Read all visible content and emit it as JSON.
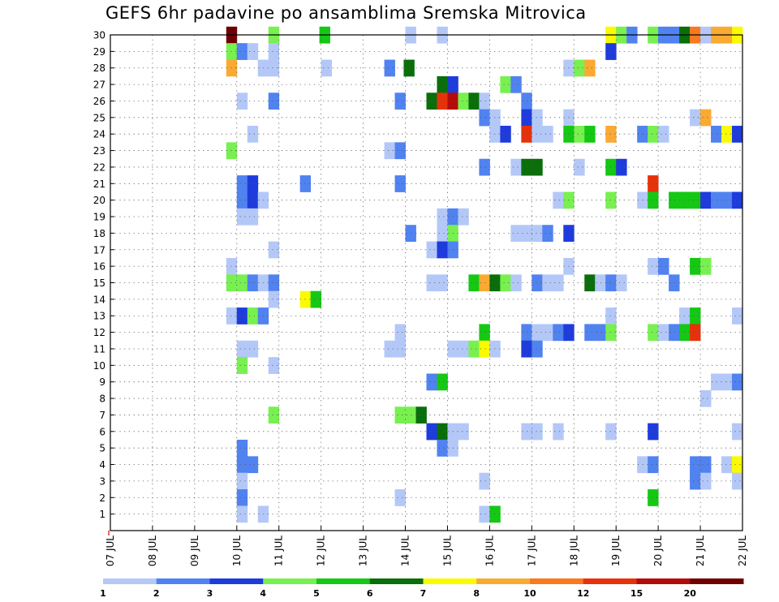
{
  "title": "GEFS 6hr padavine po ansamblima Sremska Mitrovica",
  "chart_data": {
    "type": "heatmap",
    "title": "GEFS 6hr padavine po ansamblima Sremska Mitrovica",
    "x_tick_labels": [
      "07 JUL",
      "08 JUL",
      "09 JUL",
      "10 JUL",
      "11 JUL",
      "12 JUL",
      "13 JUL",
      "14 JUL",
      "15 JUL",
      "16 JUL",
      "17 JUL",
      "18 JUL",
      "19 JUL",
      "20 JUL",
      "21 JUL",
      "22 JUL"
    ],
    "y_tick_labels": [
      "1",
      "2",
      "3",
      "4",
      "5",
      "6",
      "7",
      "8",
      "9",
      "10",
      "11",
      "12",
      "13",
      "14",
      "15",
      "16",
      "17",
      "18",
      "19",
      "20",
      "21",
      "22",
      "23",
      "24",
      "25",
      "26",
      "27",
      "28",
      "29",
      "30"
    ],
    "x_range": [
      "07 JUL 00Z",
      "22 JUL 00Z"
    ],
    "x_step": "6hr",
    "y_range": [
      0,
      30
    ],
    "grid": true,
    "legend_placement": "bottom",
    "colorbar": {
      "levels": [
        1,
        2,
        3,
        4,
        5,
        6,
        7,
        8,
        10,
        12,
        15,
        20
      ],
      "colors": [
        "#b4c8f8",
        "#5082f0",
        "#1e3cdc",
        "#78f050",
        "#14c814",
        "#0a6e0a",
        "#fafa00",
        "#faaa32",
        "#fa781e",
        "#e6320a",
        "#b40a0a",
        "#6e0000"
      ]
    },
    "cells": [
      {
        "member": 30,
        "t": 2.75,
        "c": 11
      },
      {
        "member": 30,
        "t": 3.75,
        "c": 3
      },
      {
        "member": 30,
        "t": 4.96,
        "c": 4
      },
      {
        "member": 30,
        "t": 7.0,
        "c": 0
      },
      {
        "member": 30,
        "t": 7.75,
        "c": 0
      },
      {
        "member": 30,
        "t": 11.75,
        "c": 6
      },
      {
        "member": 30,
        "t": 12.0,
        "c": 3
      },
      {
        "member": 30,
        "t": 12.25,
        "c": 1
      },
      {
        "member": 30,
        "t": 12.75,
        "c": 3
      },
      {
        "member": 30,
        "t": 13.0,
        "c": 1
      },
      {
        "member": 30,
        "t": 13.25,
        "c": 1
      },
      {
        "member": 30,
        "t": 13.5,
        "c": 5
      },
      {
        "member": 30,
        "t": 13.75,
        "c": 8
      },
      {
        "member": 30,
        "t": 14.0,
        "c": 0
      },
      {
        "member": 30,
        "t": 14.25,
        "c": 7
      },
      {
        "member": 30,
        "t": 14.5,
        "c": 7
      },
      {
        "member": 30,
        "t": 14.75,
        "c": 6
      },
      {
        "member": 29,
        "t": 2.75,
        "c": 3
      },
      {
        "member": 29,
        "t": 3.0,
        "c": 1
      },
      {
        "member": 29,
        "t": 3.25,
        "c": 0
      },
      {
        "member": 29,
        "t": 3.75,
        "c": 0
      },
      {
        "member": 29,
        "t": 11.75,
        "c": 2
      },
      {
        "member": 28,
        "t": 2.75,
        "c": 7
      },
      {
        "member": 28,
        "t": 3.5,
        "c": 0
      },
      {
        "member": 28,
        "t": 3.75,
        "c": 0
      },
      {
        "member": 28,
        "t": 5.0,
        "c": 0
      },
      {
        "member": 28,
        "t": 6.5,
        "c": 1
      },
      {
        "member": 28,
        "t": 6.96,
        "c": 5
      },
      {
        "member": 28,
        "t": 10.75,
        "c": 0
      },
      {
        "member": 28,
        "t": 11.0,
        "c": 3
      },
      {
        "member": 28,
        "t": 11.25,
        "c": 7
      },
      {
        "member": 27,
        "t": 7.75,
        "c": 5
      },
      {
        "member": 27,
        "t": 8.0,
        "c": 2
      },
      {
        "member": 27,
        "t": 9.25,
        "c": 3
      },
      {
        "member": 27,
        "t": 9.5,
        "c": 1
      },
      {
        "member": 26,
        "t": 3.0,
        "c": 0
      },
      {
        "member": 26,
        "t": 3.75,
        "c": 1
      },
      {
        "member": 26,
        "t": 6.75,
        "c": 1
      },
      {
        "member": 26,
        "t": 7.5,
        "c": 5
      },
      {
        "member": 26,
        "t": 7.75,
        "c": 9
      },
      {
        "member": 26,
        "t": 8.0,
        "c": 10
      },
      {
        "member": 26,
        "t": 8.25,
        "c": 3
      },
      {
        "member": 26,
        "t": 8.5,
        "c": 5
      },
      {
        "member": 26,
        "t": 8.75,
        "c": 0
      },
      {
        "member": 26,
        "t": 9.75,
        "c": 1
      },
      {
        "member": 25,
        "t": 8.75,
        "c": 1
      },
      {
        "member": 25,
        "t": 9.0,
        "c": 0
      },
      {
        "member": 25,
        "t": 9.75,
        "c": 2
      },
      {
        "member": 25,
        "t": 10.0,
        "c": 0
      },
      {
        "member": 25,
        "t": 10.75,
        "c": 0
      },
      {
        "member": 25,
        "t": 13.75,
        "c": 0
      },
      {
        "member": 25,
        "t": 14.0,
        "c": 7
      },
      {
        "member": 24,
        "t": 3.25,
        "c": 0
      },
      {
        "member": 24,
        "t": 9.0,
        "c": 0
      },
      {
        "member": 24,
        "t": 9.25,
        "c": 2
      },
      {
        "member": 24,
        "t": 9.75,
        "c": 9
      },
      {
        "member": 24,
        "t": 10.0,
        "c": 0
      },
      {
        "member": 24,
        "t": 10.25,
        "c": 0
      },
      {
        "member": 24,
        "t": 10.75,
        "c": 4
      },
      {
        "member": 24,
        "t": 11.0,
        "c": 3
      },
      {
        "member": 24,
        "t": 11.25,
        "c": 4
      },
      {
        "member": 24,
        "t": 11.75,
        "c": 7
      },
      {
        "member": 24,
        "t": 12.5,
        "c": 1
      },
      {
        "member": 24,
        "t": 12.75,
        "c": 3
      },
      {
        "member": 24,
        "t": 13.0,
        "c": 0
      },
      {
        "member": 24,
        "t": 14.25,
        "c": 1
      },
      {
        "member": 24,
        "t": 14.5,
        "c": 6
      },
      {
        "member": 24,
        "t": 14.75,
        "c": 2
      },
      {
        "member": 23,
        "t": 2.75,
        "c": 3
      },
      {
        "member": 23,
        "t": 6.5,
        "c": 0
      },
      {
        "member": 23,
        "t": 6.75,
        "c": 1
      },
      {
        "member": 22,
        "t": 8.75,
        "c": 1
      },
      {
        "member": 22,
        "t": 9.5,
        "c": 0
      },
      {
        "member": 22,
        "t": 9.75,
        "c": 5
      },
      {
        "member": 22,
        "t": 10.0,
        "c": 5
      },
      {
        "member": 22,
        "t": 11.0,
        "c": 0
      },
      {
        "member": 22,
        "t": 11.75,
        "c": 4
      },
      {
        "member": 22,
        "t": 12.0,
        "c": 2
      },
      {
        "member": 21,
        "t": 3.0,
        "c": 1
      },
      {
        "member": 21,
        "t": 3.25,
        "c": 2
      },
      {
        "member": 21,
        "t": 4.5,
        "c": 1
      },
      {
        "member": 21,
        "t": 6.75,
        "c": 1
      },
      {
        "member": 21,
        "t": 12.75,
        "c": 9
      },
      {
        "member": 20,
        "t": 3.0,
        "c": 1
      },
      {
        "member": 20,
        "t": 3.25,
        "c": 2
      },
      {
        "member": 20,
        "t": 3.5,
        "c": 0
      },
      {
        "member": 20,
        "t": 10.5,
        "c": 0
      },
      {
        "member": 20,
        "t": 10.75,
        "c": 3
      },
      {
        "member": 20,
        "t": 11.75,
        "c": 3
      },
      {
        "member": 20,
        "t": 12.5,
        "c": 0
      },
      {
        "member": 20,
        "t": 12.75,
        "c": 4
      },
      {
        "member": 20,
        "t": 13.25,
        "c": 4
      },
      {
        "member": 20,
        "t": 13.5,
        "c": 4
      },
      {
        "member": 20,
        "t": 13.75,
        "c": 4
      },
      {
        "member": 20,
        "t": 14.0,
        "c": 2
      },
      {
        "member": 20,
        "t": 14.25,
        "c": 1
      },
      {
        "member": 20,
        "t": 14.5,
        "c": 1
      },
      {
        "member": 20,
        "t": 14.75,
        "c": 2
      },
      {
        "member": 19,
        "t": 3.0,
        "c": 0
      },
      {
        "member": 19,
        "t": 3.25,
        "c": 0
      },
      {
        "member": 19,
        "t": 7.75,
        "c": 0
      },
      {
        "member": 19,
        "t": 8.0,
        "c": 1
      },
      {
        "member": 19,
        "t": 8.25,
        "c": 0
      },
      {
        "member": 18,
        "t": 7.0,
        "c": 1
      },
      {
        "member": 18,
        "t": 7.75,
        "c": 0
      },
      {
        "member": 18,
        "t": 8.0,
        "c": 3
      },
      {
        "member": 18,
        "t": 9.5,
        "c": 0
      },
      {
        "member": 18,
        "t": 9.75,
        "c": 0
      },
      {
        "member": 18,
        "t": 10.0,
        "c": 0
      },
      {
        "member": 18,
        "t": 10.25,
        "c": 1
      },
      {
        "member": 18,
        "t": 10.75,
        "c": 2
      },
      {
        "member": 17,
        "t": 3.75,
        "c": 0
      },
      {
        "member": 17,
        "t": 7.5,
        "c": 0
      },
      {
        "member": 17,
        "t": 7.75,
        "c": 2
      },
      {
        "member": 17,
        "t": 8.0,
        "c": 1
      },
      {
        "member": 16,
        "t": 2.75,
        "c": 0
      },
      {
        "member": 16,
        "t": 10.75,
        "c": 0
      },
      {
        "member": 16,
        "t": 12.75,
        "c": 0
      },
      {
        "member": 16,
        "t": 13.0,
        "c": 1
      },
      {
        "member": 16,
        "t": 13.75,
        "c": 4
      },
      {
        "member": 16,
        "t": 14.0,
        "c": 3
      },
      {
        "member": 15,
        "t": 2.75,
        "c": 3
      },
      {
        "member": 15,
        "t": 3.0,
        "c": 3
      },
      {
        "member": 15,
        "t": 3.25,
        "c": 1
      },
      {
        "member": 15,
        "t": 3.5,
        "c": 0
      },
      {
        "member": 15,
        "t": 3.75,
        "c": 1
      },
      {
        "member": 15,
        "t": 7.5,
        "c": 0
      },
      {
        "member": 15,
        "t": 7.75,
        "c": 0
      },
      {
        "member": 15,
        "t": 8.5,
        "c": 4
      },
      {
        "member": 15,
        "t": 8.75,
        "c": 7
      },
      {
        "member": 15,
        "t": 9.0,
        "c": 5
      },
      {
        "member": 15,
        "t": 9.25,
        "c": 3
      },
      {
        "member": 15,
        "t": 9.5,
        "c": 0
      },
      {
        "member": 15,
        "t": 10.0,
        "c": 1
      },
      {
        "member": 15,
        "t": 10.25,
        "c": 0
      },
      {
        "member": 15,
        "t": 10.5,
        "c": 0
      },
      {
        "member": 15,
        "t": 11.25,
        "c": 5
      },
      {
        "member": 15,
        "t": 11.5,
        "c": 0
      },
      {
        "member": 15,
        "t": 11.75,
        "c": 1
      },
      {
        "member": 15,
        "t": 12.0,
        "c": 0
      },
      {
        "member": 15,
        "t": 13.25,
        "c": 1
      },
      {
        "member": 14,
        "t": 3.75,
        "c": 0
      },
      {
        "member": 14,
        "t": 4.5,
        "c": 6
      },
      {
        "member": 14,
        "t": 4.75,
        "c": 4
      },
      {
        "member": 13,
        "t": 2.75,
        "c": 0
      },
      {
        "member": 13,
        "t": 3.0,
        "c": 2
      },
      {
        "member": 13,
        "t": 3.25,
        "c": 3
      },
      {
        "member": 13,
        "t": 3.5,
        "c": 1
      },
      {
        "member": 13,
        "t": 11.75,
        "c": 0
      },
      {
        "member": 13,
        "t": 13.5,
        "c": 0
      },
      {
        "member": 13,
        "t": 13.75,
        "c": 4
      },
      {
        "member": 13,
        "t": 14.75,
        "c": 0
      },
      {
        "member": 12,
        "t": 6.75,
        "c": 0
      },
      {
        "member": 12,
        "t": 8.75,
        "c": 4
      },
      {
        "member": 12,
        "t": 9.75,
        "c": 1
      },
      {
        "member": 12,
        "t": 10.0,
        "c": 0
      },
      {
        "member": 12,
        "t": 10.25,
        "c": 0
      },
      {
        "member": 12,
        "t": 10.5,
        "c": 1
      },
      {
        "member": 12,
        "t": 10.75,
        "c": 2
      },
      {
        "member": 12,
        "t": 11.25,
        "c": 1
      },
      {
        "member": 12,
        "t": 11.5,
        "c": 1
      },
      {
        "member": 12,
        "t": 11.75,
        "c": 3
      },
      {
        "member": 12,
        "t": 12.75,
        "c": 3
      },
      {
        "member": 12,
        "t": 13.0,
        "c": 0
      },
      {
        "member": 12,
        "t": 13.25,
        "c": 1
      },
      {
        "member": 12,
        "t": 13.5,
        "c": 4
      },
      {
        "member": 12,
        "t": 13.75,
        "c": 9
      },
      {
        "member": 11,
        "t": 3.0,
        "c": 0
      },
      {
        "member": 11,
        "t": 3.25,
        "c": 0
      },
      {
        "member": 11,
        "t": 6.5,
        "c": 0
      },
      {
        "member": 11,
        "t": 6.75,
        "c": 0
      },
      {
        "member": 11,
        "t": 8.0,
        "c": 0
      },
      {
        "member": 11,
        "t": 8.25,
        "c": 0
      },
      {
        "member": 11,
        "t": 8.5,
        "c": 3
      },
      {
        "member": 11,
        "t": 8.75,
        "c": 6
      },
      {
        "member": 11,
        "t": 9.0,
        "c": 0
      },
      {
        "member": 11,
        "t": 9.75,
        "c": 2
      },
      {
        "member": 11,
        "t": 10.0,
        "c": 1
      },
      {
        "member": 10,
        "t": 3.0,
        "c": 3
      },
      {
        "member": 10,
        "t": 3.75,
        "c": 0
      },
      {
        "member": 9,
        "t": 7.5,
        "c": 1
      },
      {
        "member": 9,
        "t": 7.75,
        "c": 4
      },
      {
        "member": 9,
        "t": 14.25,
        "c": 0
      },
      {
        "member": 9,
        "t": 14.5,
        "c": 0
      },
      {
        "member": 9,
        "t": 14.75,
        "c": 1
      },
      {
        "member": 8,
        "t": 14.0,
        "c": 0
      },
      {
        "member": 7,
        "t": 3.75,
        "c": 3
      },
      {
        "member": 7,
        "t": 6.75,
        "c": 3
      },
      {
        "member": 7,
        "t": 7.0,
        "c": 3
      },
      {
        "member": 7,
        "t": 7.25,
        "c": 5
      },
      {
        "member": 6,
        "t": 7.5,
        "c": 2
      },
      {
        "member": 6,
        "t": 7.75,
        "c": 5
      },
      {
        "member": 6,
        "t": 8.0,
        "c": 0
      },
      {
        "member": 6,
        "t": 8.25,
        "c": 0
      },
      {
        "member": 6,
        "t": 9.75,
        "c": 0
      },
      {
        "member": 6,
        "t": 10.0,
        "c": 0
      },
      {
        "member": 6,
        "t": 10.5,
        "c": 0
      },
      {
        "member": 6,
        "t": 11.75,
        "c": 0
      },
      {
        "member": 6,
        "t": 12.75,
        "c": 2
      },
      {
        "member": 6,
        "t": 14.75,
        "c": 0
      },
      {
        "member": 5,
        "t": 3.0,
        "c": 1
      },
      {
        "member": 5,
        "t": 7.75,
        "c": 1
      },
      {
        "member": 5,
        "t": 8.0,
        "c": 0
      },
      {
        "member": 4,
        "t": 3.0,
        "c": 1
      },
      {
        "member": 4,
        "t": 3.25,
        "c": 1
      },
      {
        "member": 4,
        "t": 12.5,
        "c": 0
      },
      {
        "member": 4,
        "t": 12.75,
        "c": 1
      },
      {
        "member": 4,
        "t": 13.75,
        "c": 1
      },
      {
        "member": 4,
        "t": 14.0,
        "c": 1
      },
      {
        "member": 4,
        "t": 14.5,
        "c": 0
      },
      {
        "member": 4,
        "t": 14.75,
        "c": 6
      },
      {
        "member": 3,
        "t": 3.0,
        "c": 0
      },
      {
        "member": 3,
        "t": 8.75,
        "c": 0
      },
      {
        "member": 3,
        "t": 13.75,
        "c": 1
      },
      {
        "member": 3,
        "t": 14.0,
        "c": 0
      },
      {
        "member": 3,
        "t": 14.75,
        "c": 0
      },
      {
        "member": 2,
        "t": 3.0,
        "c": 1
      },
      {
        "member": 2,
        "t": 6.75,
        "c": 0
      },
      {
        "member": 2,
        "t": 12.75,
        "c": 4
      },
      {
        "member": 1,
        "t": 3.0,
        "c": 0
      },
      {
        "member": 1,
        "t": 3.5,
        "c": 0
      },
      {
        "member": 1,
        "t": 8.75,
        "c": 0
      },
      {
        "member": 1,
        "t": 9.0,
        "c": 4
      }
    ]
  }
}
